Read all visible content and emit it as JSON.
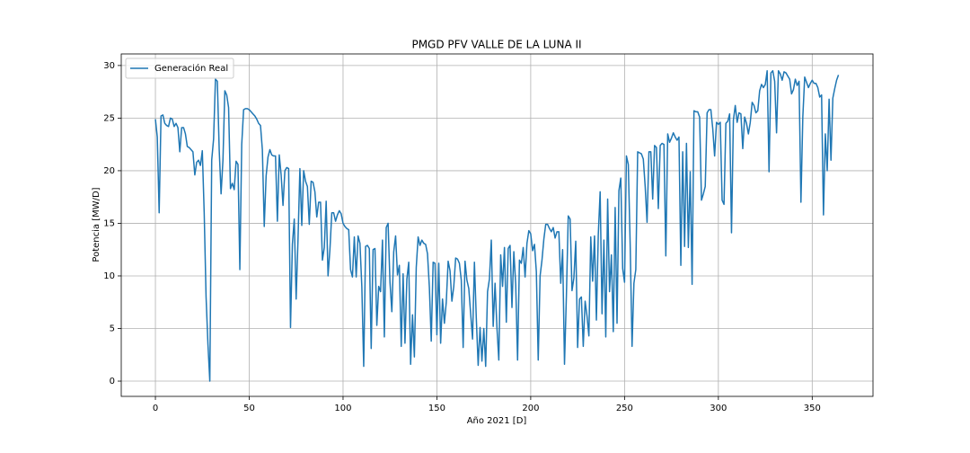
{
  "chart_data": {
    "type": "line",
    "title": "PMGD PFV VALLE DE LA LUNA II",
    "x_label": "Año 2021 [D]",
    "y_label": "Potencia [MW/D]",
    "xlim": [
      -18.2,
      382.4
    ],
    "ylim": [
      -1.45,
      31.1
    ],
    "xticks": [
      0,
      50,
      100,
      150,
      200,
      250,
      300,
      350
    ],
    "yticks": [
      0,
      5,
      10,
      15,
      20,
      25,
      30
    ],
    "grid": true,
    "legend": "upper left",
    "x": [
      0,
      1,
      2,
      3,
      4,
      5,
      6,
      7,
      8,
      9,
      10,
      11,
      12,
      13,
      14,
      15,
      16,
      17,
      18,
      19,
      20,
      21,
      22,
      23,
      24,
      25,
      26,
      27,
      28,
      29,
      30,
      31,
      32,
      33,
      34,
      35,
      36,
      37,
      38,
      39,
      40,
      41,
      42,
      43,
      44,
      45,
      46,
      47,
      48,
      49,
      50,
      51,
      52,
      53,
      54,
      55,
      56,
      57,
      58,
      59,
      60,
      61,
      62,
      63,
      64,
      65,
      66,
      67,
      68,
      69,
      70,
      71,
      72,
      73,
      74,
      75,
      76,
      77,
      78,
      79,
      80,
      81,
      82,
      83,
      84,
      85,
      86,
      87,
      88,
      89,
      90,
      91,
      92,
      93,
      94,
      95,
      96,
      97,
      98,
      99,
      100,
      101,
      102,
      103,
      104,
      105,
      106,
      107,
      108,
      109,
      110,
      111,
      112,
      113,
      114,
      115,
      116,
      117,
      118,
      119,
      120,
      121,
      122,
      123,
      124,
      125,
      126,
      127,
      128,
      129,
      130,
      131,
      132,
      133,
      134,
      135,
      136,
      137,
      138,
      139,
      140,
      141,
      142,
      143,
      144,
      145,
      146,
      147,
      148,
      149,
      150,
      151,
      152,
      153,
      154,
      155,
      156,
      157,
      158,
      159,
      160,
      161,
      162,
      163,
      164,
      165,
      166,
      167,
      168,
      169,
      170,
      171,
      172,
      173,
      174,
      175,
      176,
      177,
      178,
      179,
      180,
      181,
      182,
      183,
      184,
      185,
      186,
      187,
      188,
      189,
      190,
      191,
      192,
      193,
      194,
      195,
      196,
      197,
      198,
      199,
      200,
      201,
      202,
      203,
      204,
      205,
      206,
      207,
      208,
      209,
      210,
      211,
      212,
      213,
      214,
      215,
      216,
      217,
      218,
      219,
      220,
      221,
      222,
      223,
      224,
      225,
      226,
      227,
      228,
      229,
      230,
      231,
      232,
      233,
      234,
      235,
      236,
      237,
      238,
      239,
      240,
      241,
      242,
      243,
      244,
      245,
      246,
      247,
      248,
      249,
      250,
      251,
      252,
      253,
      254,
      255,
      256,
      257,
      258,
      259,
      260,
      261,
      262,
      263,
      264,
      265,
      266,
      267,
      268,
      269,
      270,
      271,
      272,
      273,
      274,
      275,
      276,
      277,
      278,
      279,
      280,
      281,
      282,
      283,
      284,
      285,
      286,
      287,
      288,
      289,
      290,
      291,
      292,
      293,
      294,
      295,
      296,
      297,
      298,
      299,
      300,
      301,
      302,
      303,
      304,
      305,
      306,
      307,
      308,
      309,
      310,
      311,
      312,
      313,
      314,
      315,
      316,
      317,
      318,
      319,
      320,
      321,
      322,
      323,
      324,
      325,
      326,
      327,
      328,
      329,
      330,
      331,
      332,
      333,
      334,
      335,
      336,
      337,
      338,
      339,
      340,
      341,
      342,
      343,
      344,
      345,
      346,
      347,
      348,
      349,
      350,
      351,
      352,
      353,
      354,
      355,
      356,
      357,
      358,
      359,
      360,
      361,
      362,
      363,
      364
    ],
    "series": [
      {
        "name": "Generación Real",
        "color": "#1f77b4",
        "values": [
          24.9,
          23.2,
          16,
          25.2,
          25.3,
          24.5,
          24.3,
          24.2,
          25,
          24.9,
          24.2,
          24.5,
          24.1,
          21.8,
          24.1,
          24.1,
          23.5,
          22.3,
          22.2,
          22,
          21.8,
          19.6,
          20.8,
          21,
          20.5,
          21.9,
          16,
          8,
          3.5,
          0,
          21,
          23,
          28.7,
          28.5,
          22,
          17.8,
          21,
          27.6,
          27.2,
          26,
          18.3,
          18.8,
          18.2,
          20.9,
          20.6,
          10.6,
          22.5,
          25.8,
          25.9,
          25.9,
          25.8,
          25.6,
          25.4,
          25.2,
          24.9,
          24.5,
          24.3,
          22,
          14.7,
          19.5,
          21.3,
          22,
          21.5,
          21.4,
          21.4,
          15.2,
          21.5,
          19.6,
          16.7,
          20,
          20.3,
          20.2,
          5.1,
          13,
          15.4,
          7.8,
          13.5,
          20.2,
          14.8,
          20,
          19,
          18.5,
          14.9,
          19,
          18.9,
          18,
          15.6,
          17,
          17,
          11.5,
          12.7,
          17.1,
          10,
          12.5,
          16,
          16,
          15.2,
          15.8,
          16.2,
          15.9,
          15,
          14.7,
          14.5,
          14.4,
          10.6,
          9.9,
          13.7,
          9.9,
          13.8,
          13.1,
          9,
          1.4,
          12.8,
          12.9,
          12.6,
          3.1,
          12.5,
          12.6,
          5.3,
          9,
          8.5,
          13.4,
          4.2,
          14.6,
          15,
          9.4,
          6.6,
          12.3,
          13.8,
          10.1,
          11,
          3.3,
          10.2,
          3.6,
          9.7,
          11.3,
          1.6,
          6.3,
          2.3,
          10.8,
          13.7,
          12.9,
          13.4,
          13.1,
          13,
          12.1,
          8.9,
          3.8,
          11.3,
          11.2,
          4.4,
          11.2,
          3.6,
          7.8,
          5.5,
          7.5,
          11.4,
          10.5,
          7.6,
          9,
          11.7,
          11.6,
          11.2,
          9.6,
          3.2,
          11.4,
          9.6,
          8.8,
          6.4,
          4,
          11.3,
          6,
          1.5,
          5.1,
          1.9,
          5,
          1.4,
          8.5,
          9.7,
          13.4,
          5.2,
          9.3,
          5.1,
          2,
          12,
          9,
          12.7,
          5.6,
          12.6,
          12.9,
          7,
          12.3,
          9.2,
          2,
          11.5,
          11.2,
          12.7,
          9.9,
          13.1,
          14.3,
          14,
          12.4,
          13,
          10.4,
          2,
          10,
          11.5,
          13.5,
          14.9,
          14.9,
          14.5,
          14.2,
          14.6,
          13.6,
          14.2,
          14.2,
          9.3,
          12.5,
          1.6,
          8,
          15.7,
          15.4,
          8.6,
          9.8,
          13.3,
          3.2,
          7.8,
          8,
          3.3,
          7.6,
          6.2,
          4.3,
          13.7,
          9.5,
          13.8,
          5.8,
          13.9,
          18,
          6.4,
          13.4,
          4.2,
          17.3,
          8.5,
          12,
          4.7,
          16.5,
          5.5,
          18.1,
          19.3,
          10.7,
          9.4,
          21.4,
          20.6,
          13,
          3.3,
          9.3,
          10.6,
          21.8,
          21.7,
          21.6,
          21.1,
          18.5,
          15.1,
          21.8,
          21.8,
          17.3,
          22.4,
          22.2,
          16.4,
          22.4,
          22.6,
          22.5,
          11.9,
          23.5,
          22.7,
          23.1,
          23.6,
          23.2,
          22.9,
          23.2,
          11,
          21.8,
          12.8,
          22.6,
          12.7,
          19.9,
          9.2,
          25.7,
          25.6,
          25.6,
          25.1,
          17.2,
          17.8,
          18.5,
          25.5,
          25.8,
          25.8,
          24,
          21.4,
          24.6,
          24.4,
          24.6,
          17.2,
          16.8,
          24.5,
          24.7,
          25.4,
          14.1,
          24.8,
          26.2,
          24.6,
          25.5,
          25.4,
          22.1,
          25.1,
          24.5,
          23.5,
          24.6,
          26.5,
          26.2,
          25.5,
          25.7,
          27.6,
          28.2,
          27.9,
          28.2,
          29.5,
          19.9,
          29.3,
          29.5,
          28.5,
          23.6,
          29.5,
          29.2,
          28.6,
          29.4,
          29.3,
          29,
          28.7,
          27.3,
          27.7,
          28.7,
          28.1,
          28.5,
          17,
          25.1,
          28.9,
          28.4,
          27.9,
          28.3,
          28.6,
          28.3,
          28.3,
          27.9,
          27,
          27.2,
          15.8,
          23.5,
          20,
          26.8,
          21,
          26.9,
          27.8,
          28.6,
          29.1
        ]
      }
    ]
  }
}
